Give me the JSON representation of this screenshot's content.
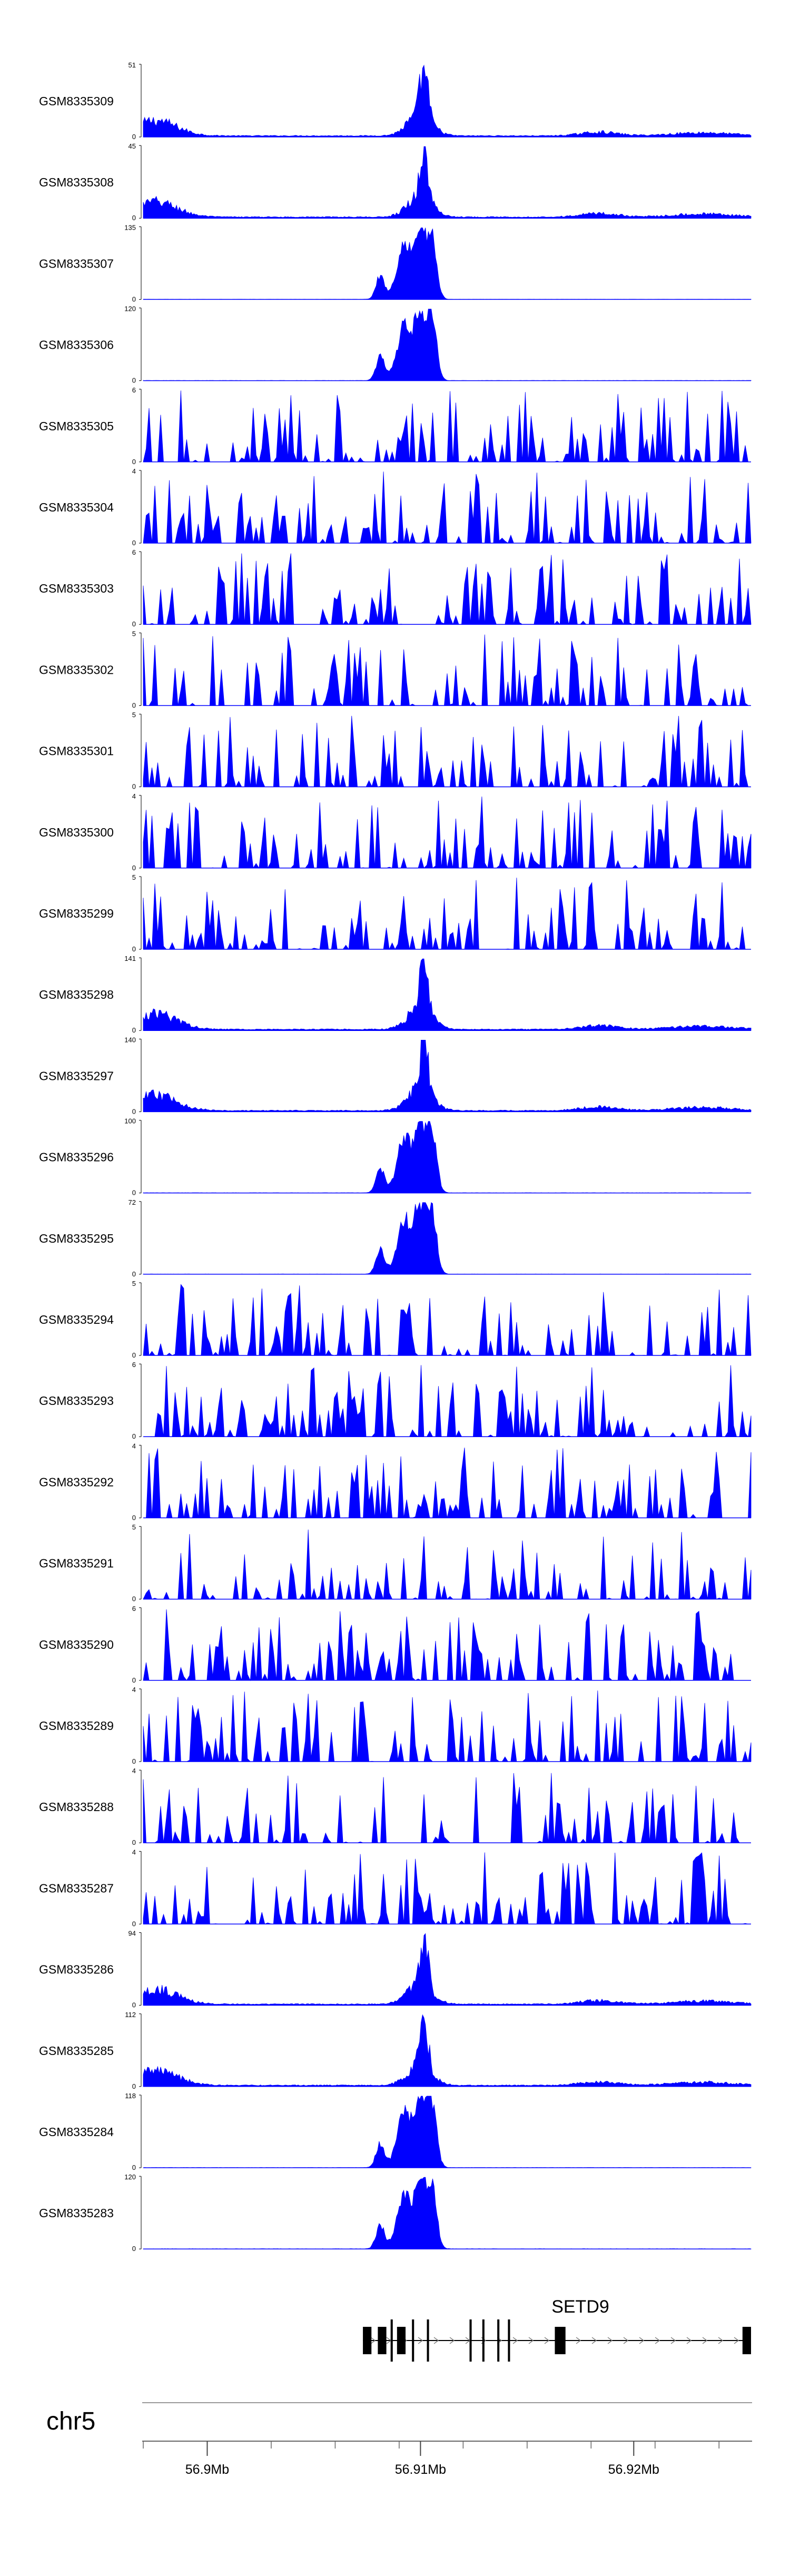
{
  "chart_data": {
    "type": "area",
    "title": "",
    "chromosome": "chr5",
    "region_mb": [
      56.897,
      56.9255
    ],
    "fill_color": "#0000ff",
    "gene": {
      "name": "SETD9",
      "start_mb": 56.9073,
      "end_mb": 56.9255,
      "strand": "+",
      "exons_mb": [
        [
          56.9073,
          56.9077
        ],
        [
          56.908,
          56.9084
        ],
        [
          56.9086,
          56.9087
        ],
        [
          56.9089,
          56.9093
        ],
        [
          56.9096,
          56.9097
        ],
        [
          56.9103,
          56.9104
        ],
        [
          56.9123,
          56.9124
        ],
        [
          56.9129,
          56.913
        ],
        [
          56.9136,
          56.9137
        ],
        [
          56.9141,
          56.9142
        ],
        [
          56.9163,
          56.9168
        ],
        [
          56.9251,
          56.9255
        ]
      ]
    },
    "x_axis": {
      "tick_labels": [
        "56.9Mb",
        "56.91Mb",
        "56.92Mb"
      ],
      "tick_values_mb": [
        56.9,
        56.91,
        56.92
      ],
      "minor_ticks_mb": [
        56.897,
        56.9,
        56.903,
        56.906,
        56.909,
        56.91,
        56.912,
        56.915,
        56.918,
        56.92,
        56.921,
        56.924
      ]
    },
    "series": [
      {
        "name": "GSM8335309",
        "ymax": 51,
        "pattern": "peak"
      },
      {
        "name": "GSM8335308",
        "ymax": 45,
        "pattern": "peak"
      },
      {
        "name": "GSM8335307",
        "ymax": 135,
        "pattern": "tripeak"
      },
      {
        "name": "GSM8335306",
        "ymax": 120,
        "pattern": "tripeak"
      },
      {
        "name": "GSM8335305",
        "ymax": 6,
        "pattern": "noise"
      },
      {
        "name": "GSM8335304",
        "ymax": 4,
        "pattern": "noise"
      },
      {
        "name": "GSM8335303",
        "ymax": 6,
        "pattern": "noise"
      },
      {
        "name": "GSM8335302",
        "ymax": 5,
        "pattern": "noise"
      },
      {
        "name": "GSM8335301",
        "ymax": 5,
        "pattern": "noise"
      },
      {
        "name": "GSM8335300",
        "ymax": 4,
        "pattern": "noise"
      },
      {
        "name": "GSM8335299",
        "ymax": 5,
        "pattern": "noise"
      },
      {
        "name": "GSM8335298",
        "ymax": 141,
        "pattern": "peak"
      },
      {
        "name": "GSM8335297",
        "ymax": 140,
        "pattern": "peak"
      },
      {
        "name": "GSM8335296",
        "ymax": 100,
        "pattern": "tripeak"
      },
      {
        "name": "GSM8335295",
        "ymax": 72,
        "pattern": "tripeak"
      },
      {
        "name": "GSM8335294",
        "ymax": 5,
        "pattern": "noise"
      },
      {
        "name": "GSM8335293",
        "ymax": 6,
        "pattern": "noise"
      },
      {
        "name": "GSM8335292",
        "ymax": 4,
        "pattern": "noise"
      },
      {
        "name": "GSM8335291",
        "ymax": 5,
        "pattern": "noise"
      },
      {
        "name": "GSM8335290",
        "ymax": 6,
        "pattern": "noise"
      },
      {
        "name": "GSM8335289",
        "ymax": 4,
        "pattern": "noise"
      },
      {
        "name": "GSM8335288",
        "ymax": 4,
        "pattern": "noise"
      },
      {
        "name": "GSM8335287",
        "ymax": 4,
        "pattern": "noise"
      },
      {
        "name": "GSM8335286",
        "ymax": 94,
        "pattern": "peak"
      },
      {
        "name": "GSM8335285",
        "ymax": 112,
        "pattern": "peak"
      },
      {
        "name": "GSM8335284",
        "ymax": 118,
        "pattern": "tripeak"
      },
      {
        "name": "GSM8335283",
        "ymax": 120,
        "pattern": "tripeak"
      }
    ],
    "ymin_label": "0"
  }
}
